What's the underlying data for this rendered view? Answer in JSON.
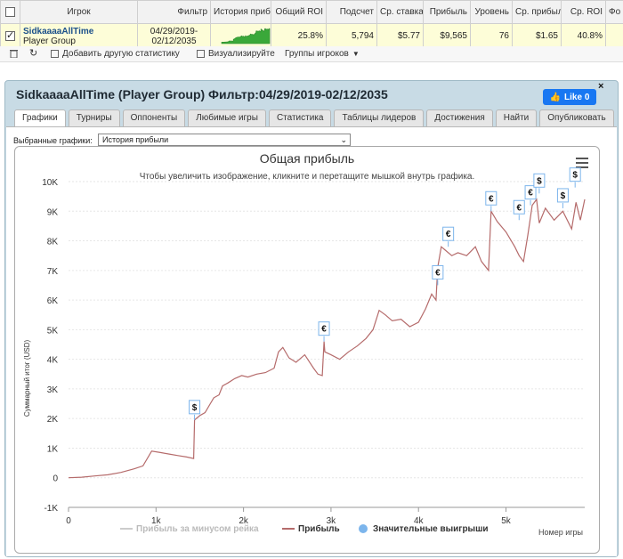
{
  "table": {
    "headers": [
      "Игрок",
      "Фильтр",
      "История приб",
      "Общий ROI",
      "Подсчет",
      "Ср. ставка",
      "Прибыль",
      "Уровень",
      "Ср. прибыль",
      "Ср. ROI",
      "Фо"
    ],
    "row": {
      "player_name": "SidkaaaaAllTime",
      "player_type": "Player Group",
      "filter_line1": "04/29/2019-",
      "filter_line2": "02/12/2035",
      "total_roi": "25.8%",
      "count": "5,794",
      "avg_stake": "$5.77",
      "profit": "$9,565",
      "level": "76",
      "avg_profit": "$1.65",
      "avg_roi": "40.8%",
      "checked": true
    }
  },
  "toolbar": {
    "add_stat": "Добавить другую статистику",
    "visualize": "Визуализируйте",
    "groups": "Группы игроков"
  },
  "panel": {
    "title": "SidkaaaaAllTime (Player Group) Фильтр:04/29/2019-02/12/2035",
    "like_label": "Like 0",
    "close_label": "×",
    "tabs": [
      "Графики",
      "Турниры",
      "Оппоненты",
      "Любимые игры",
      "Статистика",
      "Таблицы лидеров",
      "Достижения",
      "Найти",
      "Опубликовать"
    ],
    "active_tab": 0,
    "selector_label": "Выбранные графики:",
    "selector_value": "История прибыли"
  },
  "chart_data": {
    "type": "line",
    "title": "Общая прибыль",
    "subtitle": "Чтобы увеличить изображение, кликните и перетащите мышкой внутрь графика.",
    "ylabel": "Суммарный итог (USD)",
    "xlabel": "Номер игры",
    "ylim": [
      -1000,
      10000
    ],
    "xlim": [
      0,
      5900
    ],
    "y_ticks": [
      "-1K",
      "0",
      "1K",
      "2K",
      "3K",
      "4K",
      "5K",
      "6K",
      "7K",
      "8K",
      "9K",
      "10K"
    ],
    "x_ticks": [
      "0",
      "1k",
      "2k",
      "3k",
      "4k",
      "5k"
    ],
    "x_tick_values": [
      0,
      1000,
      2000,
      3000,
      4000,
      5000
    ],
    "y_tick_values": [
      -1000,
      0,
      1000,
      2000,
      3000,
      4000,
      5000,
      6000,
      7000,
      8000,
      9000,
      10000
    ],
    "grid": true,
    "legend": [
      "Прибыль за минусом рейка",
      "Прибыль",
      "Значительные выигрыши"
    ],
    "series": [
      {
        "name": "Прибыль",
        "color": "#b56b6b",
        "x": [
          0,
          150,
          300,
          450,
          600,
          750,
          850,
          950,
          1050,
          1150,
          1250,
          1350,
          1430,
          1440,
          1500,
          1560,
          1620,
          1660,
          1720,
          1760,
          1820,
          1900,
          1980,
          2050,
          2150,
          2250,
          2350,
          2400,
          2450,
          2520,
          2600,
          2700,
          2800,
          2850,
          2900,
          2920,
          2930,
          3000,
          3100,
          3200,
          3300,
          3400,
          3480,
          3550,
          3620,
          3700,
          3800,
          3900,
          4000,
          4080,
          4150,
          4200,
          4220,
          4260,
          4300,
          4380,
          4450,
          4550,
          4650,
          4720,
          4800,
          4830,
          4900,
          5000,
          5100,
          5150,
          5200,
          5250,
          5300,
          5350,
          5380,
          5450,
          5550,
          5650,
          5750,
          5800,
          5850,
          5900
        ],
        "y": [
          0,
          20,
          60,
          100,
          180,
          300,
          400,
          900,
          850,
          800,
          750,
          700,
          650,
          1950,
          2100,
          2200,
          2500,
          2700,
          2800,
          3100,
          3200,
          3350,
          3450,
          3400,
          3500,
          3550,
          3700,
          4250,
          4400,
          4050,
          3900,
          4150,
          3700,
          3500,
          3450,
          4600,
          4250,
          4150,
          4000,
          4250,
          4450,
          4700,
          5000,
          5650,
          5500,
          5300,
          5350,
          5100,
          5250,
          5700,
          6200,
          6000,
          7100,
          7800,
          7700,
          7500,
          7600,
          7500,
          7800,
          7300,
          7000,
          9000,
          8650,
          8300,
          7800,
          7500,
          7300,
          8200,
          9200,
          9400,
          8600,
          9100,
          8700,
          9000,
          8400,
          9300,
          8700,
          9400
        ]
      }
    ],
    "markers": [
      {
        "x": 1440,
        "y": 1950,
        "label": "$"
      },
      {
        "x": 2920,
        "y": 4600,
        "label": "€"
      },
      {
        "x": 4220,
        "y": 6500,
        "label": "€"
      },
      {
        "x": 4340,
        "y": 7800,
        "label": "€"
      },
      {
        "x": 4830,
        "y": 9000,
        "label": "€"
      },
      {
        "x": 5150,
        "y": 8700,
        "label": "€"
      },
      {
        "x": 5280,
        "y": 9200,
        "label": "€"
      },
      {
        "x": 5380,
        "y": 9600,
        "label": "$"
      },
      {
        "x": 5650,
        "y": 9100,
        "label": "$"
      },
      {
        "x": 5790,
        "y": 9800,
        "label": "$"
      }
    ]
  }
}
